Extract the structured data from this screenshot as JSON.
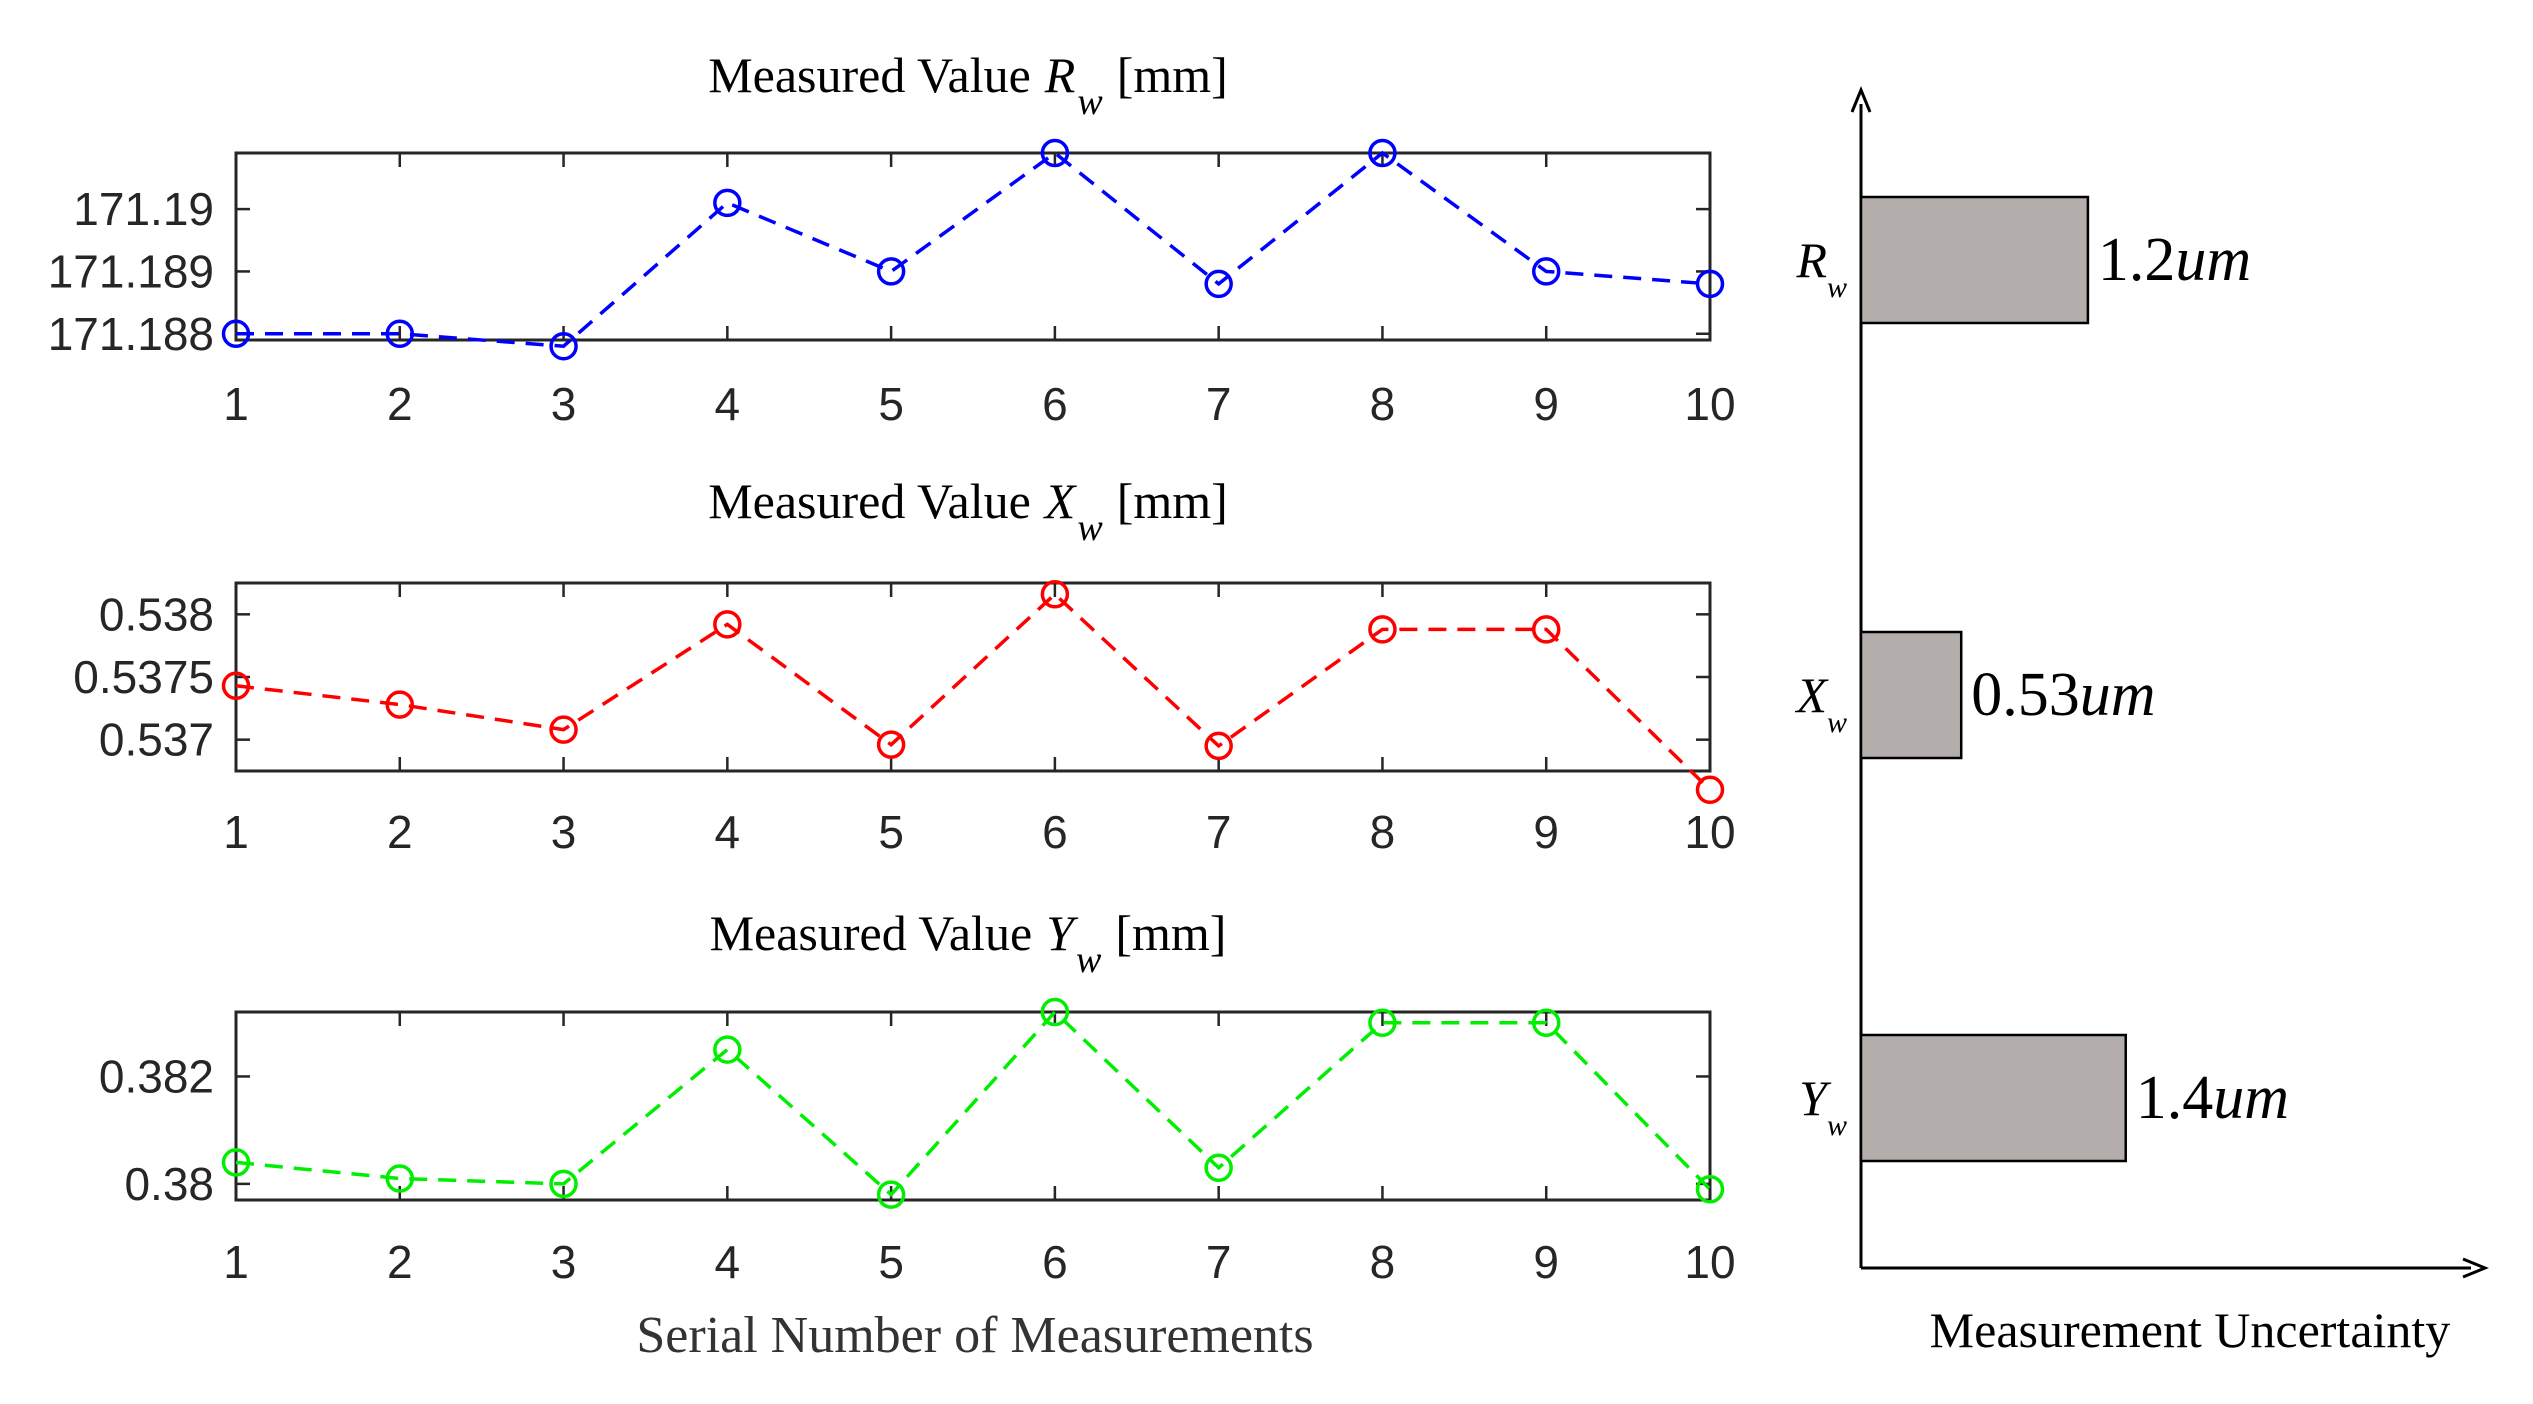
{
  "chart_data": [
    {
      "type": "line",
      "title_prefix": "Measured Value",
      "title_var": "R",
      "title_sub": "w",
      "title_unit": "[mm]",
      "xlabel": "",
      "ylabel": "",
      "x": [
        1,
        2,
        3,
        4,
        5,
        6,
        7,
        8,
        9,
        10
      ],
      "xlim": [
        1,
        10
      ],
      "ylim": [
        171.1879,
        171.1909
      ],
      "yticks": [
        171.188,
        171.189,
        171.19
      ],
      "ytick_labels": [
        "171.188",
        "171.189",
        "171.19"
      ],
      "series": [
        {
          "name": "Rw",
          "color": "#0000ff",
          "line_style": "dashed",
          "marker": "open-circle",
          "values": [
            171.188,
            171.188,
            171.1878,
            171.1901,
            171.189,
            171.1909,
            171.1888,
            171.1909,
            171.189,
            171.1888
          ]
        }
      ]
    },
    {
      "type": "line",
      "title_prefix": "Measured Value",
      "title_var": "X",
      "title_sub": "w",
      "title_unit": "[mm]",
      "xlabel": "",
      "ylabel": "",
      "x": [
        1,
        2,
        3,
        4,
        5,
        6,
        7,
        8,
        9,
        10
      ],
      "xlim": [
        1,
        10
      ],
      "ylim": [
        0.53675,
        0.53825
      ],
      "yticks": [
        0.537,
        0.5375,
        0.538
      ],
      "ytick_labels": [
        "0.537",
        "0.5375",
        "0.538"
      ],
      "series": [
        {
          "name": "Xw",
          "color": "#ff0000",
          "line_style": "dashed",
          "marker": "open-circle",
          "values": [
            0.53743,
            0.53728,
            0.53708,
            0.53792,
            0.53696,
            0.53816,
            0.53695,
            0.53788,
            0.53788,
            0.5366
          ]
        }
      ]
    },
    {
      "type": "line",
      "title_prefix": "Measured Value",
      "title_var": "Y",
      "title_sub": "w",
      "title_unit": "[mm]",
      "xlabel": "Serial Number of Measurements",
      "ylabel": "",
      "x": [
        1,
        2,
        3,
        4,
        5,
        6,
        7,
        8,
        9,
        10
      ],
      "xlim": [
        1,
        10
      ],
      "ylim": [
        0.3797,
        0.3832
      ],
      "yticks": [
        0.38,
        0.382
      ],
      "ytick_labels": [
        "0.38",
        "0.382"
      ],
      "series": [
        {
          "name": "Yw",
          "color": "#00ee00",
          "line_style": "dashed",
          "marker": "open-circle",
          "values": [
            0.3804,
            0.3801,
            0.38,
            0.3825,
            0.3798,
            0.3832,
            0.3803,
            0.383,
            0.383,
            0.3799
          ]
        }
      ]
    },
    {
      "type": "bar",
      "orientation": "horizontal",
      "xlabel": "Measurement Uncertainty",
      "bar_color": "#b3aeab",
      "xlim": [
        0,
        3.3
      ],
      "categories": [
        {
          "var": "R",
          "sub": "w"
        },
        {
          "var": "X",
          "sub": "w"
        },
        {
          "var": "Y",
          "sub": "w"
        }
      ],
      "values": [
        1.2,
        0.53,
        1.4
      ],
      "value_labels": [
        {
          "num": "1.2",
          "unit": "um"
        },
        {
          "num": "0.53",
          "unit": "um"
        },
        {
          "num": "1.4",
          "unit": "um"
        }
      ]
    }
  ]
}
